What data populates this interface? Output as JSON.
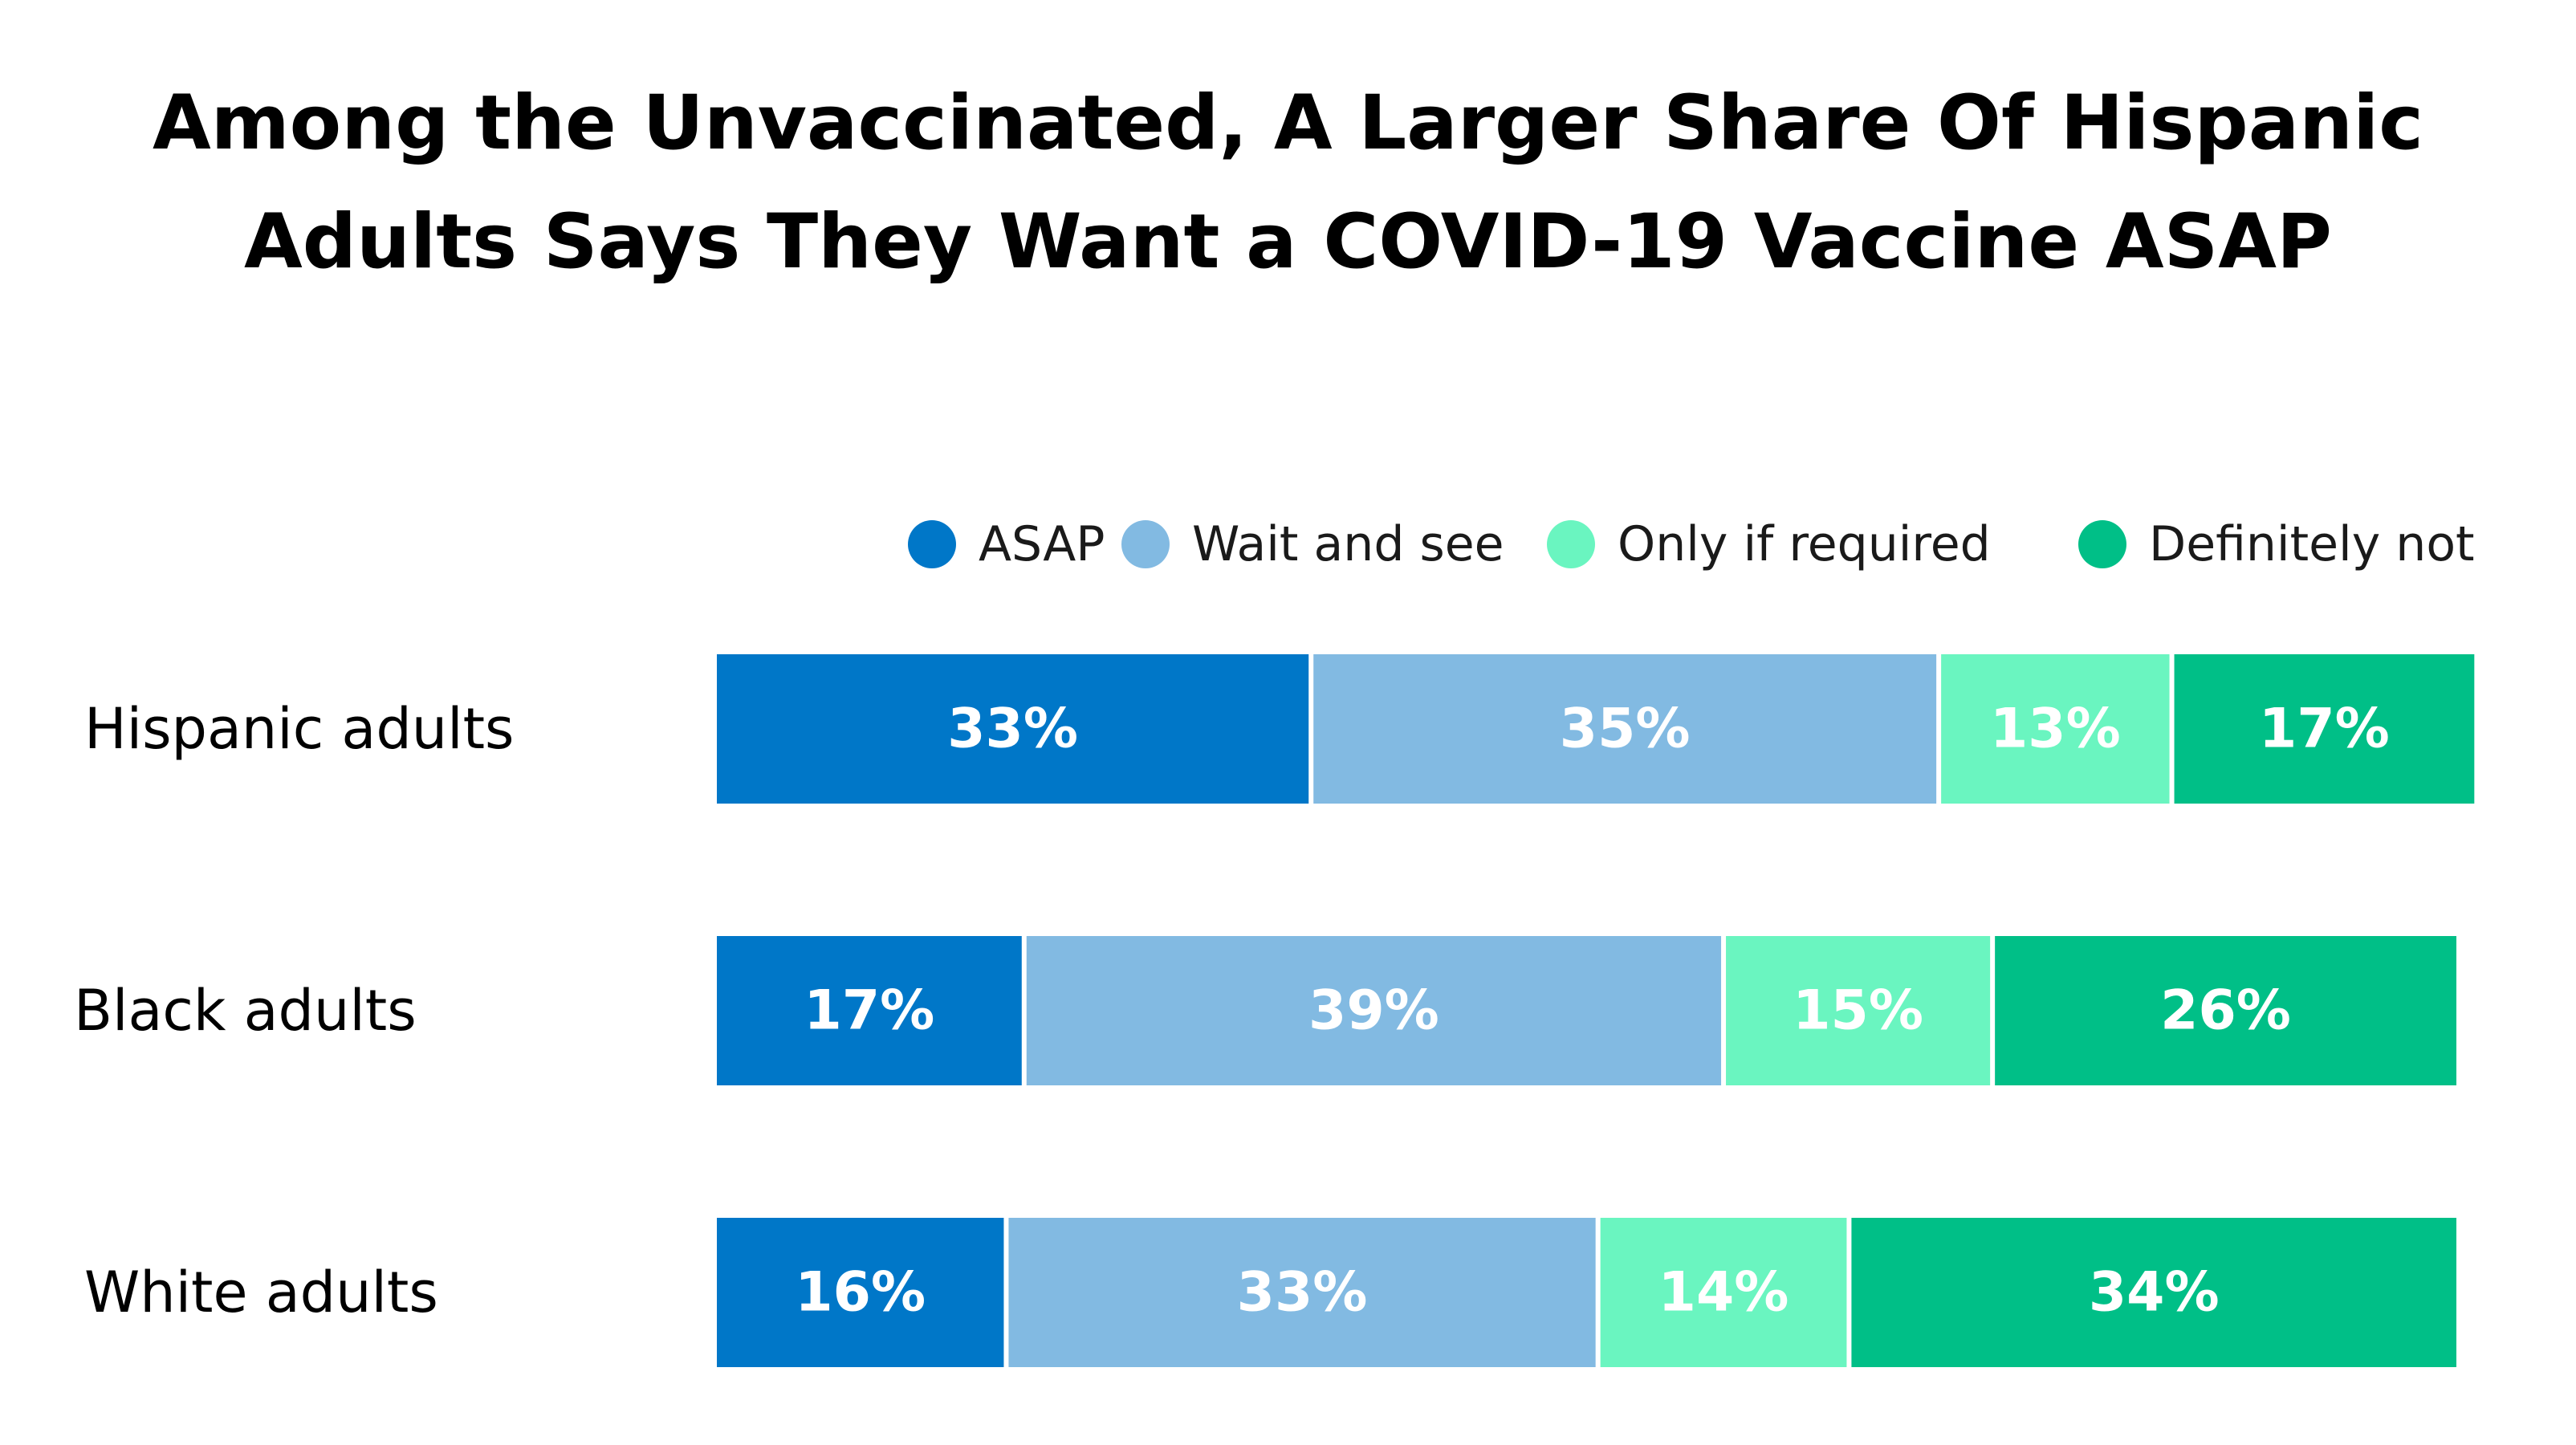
{
  "title_lines": [
    "Among the Unvaccinated, A Larger Share Of Hispanic",
    "Adults Says They Want a COVID-19 Vaccine ASAP"
  ],
  "chart_data": {
    "type": "bar",
    "orientation": "horizontal",
    "stacked": true,
    "title": "Among the Unvaccinated, A Larger Share Of Hispanic Adults Says They Want a COVID-19 Vaccine ASAP",
    "categories": [
      "Hispanic adults",
      "Black adults",
      "White adults"
    ],
    "series": [
      {
        "name": "ASAP",
        "color": "#0077c8",
        "values": [
          33,
          17,
          16
        ]
      },
      {
        "name": "Wait and see",
        "color": "#82bae2",
        "values": [
          35,
          39,
          33
        ]
      },
      {
        "name": "Only if required",
        "color": "#6af5c0",
        "values": [
          13,
          15,
          14
        ]
      },
      {
        "name": "Definitely not",
        "color": "#00bf87",
        "values": [
          17,
          26,
          34
        ]
      }
    ],
    "value_suffix": "%",
    "xlim": [
      0,
      100
    ],
    "xlabel": "",
    "ylabel": "",
    "grid": false,
    "legend_position": "top-right"
  }
}
